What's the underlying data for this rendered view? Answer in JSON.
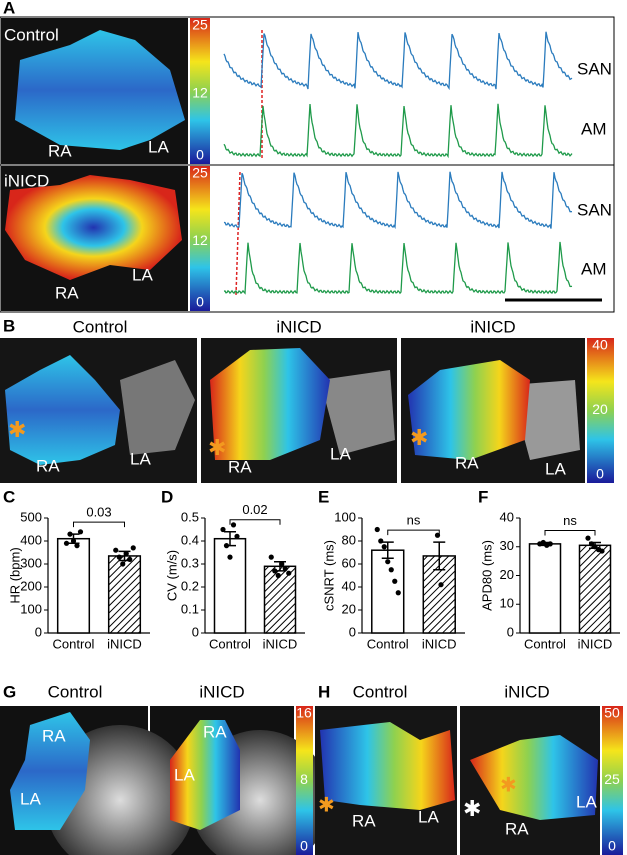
{
  "panel_labels": [
    "A",
    "B",
    "C",
    "D",
    "E",
    "F",
    "G",
    "H"
  ],
  "A": {
    "rows": [
      {
        "condition": "Control",
        "atria": [
          "RA",
          "LA"
        ],
        "traces": [
          "SAN",
          "AM"
        ],
        "colorbar": {
          "lim": [
            0,
            25
          ],
          "ticks": [
            0,
            12,
            25
          ]
        }
      },
      {
        "condition": "iNICD",
        "atria": [
          "RA",
          "LA"
        ],
        "traces": [
          "SAN",
          "AM"
        ],
        "colorbar": {
          "lim": [
            0,
            25
          ],
          "ticks": [
            0,
            12,
            25
          ]
        }
      }
    ]
  },
  "B": {
    "titles": [
      "Control",
      "iNICD",
      "iNICD"
    ],
    "atria": [
      [
        "RA",
        "LA"
      ],
      [
        "RA",
        "LA"
      ],
      [
        "RA",
        "LA"
      ]
    ],
    "colorbar": {
      "lim": [
        0,
        40
      ],
      "ticks": [
        0,
        20,
        40
      ]
    }
  },
  "G": {
    "titles": [
      "Control",
      "iNICD"
    ],
    "atria": [
      [
        "RA",
        "LA"
      ],
      [
        "RA",
        "LA"
      ]
    ],
    "colorbar": {
      "lim": [
        0,
        16
      ],
      "ticks": [
        0,
        8,
        16
      ]
    }
  },
  "H": {
    "titles": [
      "Control",
      "iNICD"
    ],
    "atria": [
      [
        "RA",
        "LA"
      ],
      [
        "RA",
        "LA"
      ]
    ],
    "colorbar": {
      "lim": [
        0,
        50
      ],
      "ticks": [
        0,
        25,
        50
      ]
    }
  },
  "chart_data": [
    {
      "type": "bar",
      "ylabel": "HR (bpm)",
      "categories": [
        "Control",
        "iNICD"
      ],
      "values": [
        410,
        335
      ],
      "errors": [
        20,
        20
      ],
      "points": [
        [
          390,
          430,
          400,
          380,
          440
        ],
        [
          360,
          330,
          300,
          345,
          320,
          370
        ]
      ],
      "hatch": [
        false,
        true
      ],
      "ylim": [
        0,
        500
      ],
      "yticks": [
        0,
        100,
        200,
        300,
        400,
        500
      ],
      "annotation": "0.03"
    },
    {
      "type": "bar",
      "ylabel": "CV (m/s)",
      "categories": [
        "Control",
        "iNICD"
      ],
      "values": [
        0.41,
        0.29
      ],
      "errors": [
        0.03,
        0.02
      ],
      "points": [
        [
          0.45,
          0.38,
          0.33,
          0.47,
          0.42
        ],
        [
          0.33,
          0.27,
          0.25,
          0.3,
          0.28,
          0.26
        ]
      ],
      "hatch": [
        false,
        true
      ],
      "ylim": [
        0,
        0.5
      ],
      "yticks": [
        0,
        0.1,
        0.2,
        0.3,
        0.4,
        0.5
      ],
      "annotation": "0.02"
    },
    {
      "type": "bar",
      "ylabel": "cSNRT (ms)",
      "categories": [
        "Control",
        "iNICD"
      ],
      "values": [
        72,
        67
      ],
      "errors": [
        7,
        12
      ],
      "points": [
        [
          90,
          80,
          75,
          62,
          55,
          45,
          35
        ],
        [
          85,
          42
        ]
      ],
      "hatch": [
        false,
        true
      ],
      "ylim": [
        0,
        100
      ],
      "yticks": [
        0,
        20,
        40,
        60,
        80,
        100
      ],
      "annotation": "ns"
    },
    {
      "type": "bar",
      "ylabel": "APD80 (ms)",
      "categories": [
        "Control",
        "iNICD"
      ],
      "values": [
        31,
        30.5
      ],
      "errors": [
        0.5,
        1
      ],
      "points": [
        [
          31,
          31.5,
          30.5,
          31
        ],
        [
          33,
          31,
          30,
          29,
          28.5
        ]
      ],
      "hatch": [
        false,
        true
      ],
      "ylim": [
        0,
        40
      ],
      "yticks": [
        0,
        10,
        20,
        30,
        40
      ],
      "annotation": "ns"
    }
  ]
}
